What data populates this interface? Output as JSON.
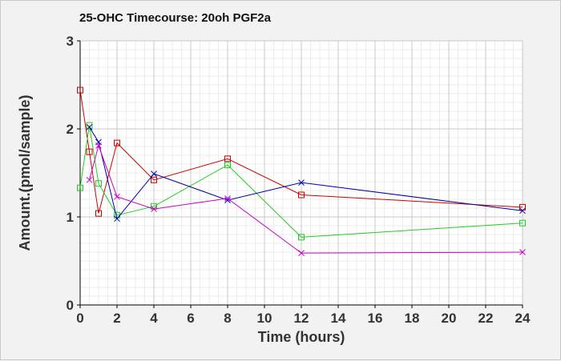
{
  "chart_data": {
    "type": "line",
    "title": "25-OHC Timecourse: 20oh PGF2a",
    "xlabel": "Time (hours)",
    "ylabel": "Amount.(pmol/sample)",
    "xlim": [
      0,
      24
    ],
    "ylim": [
      0,
      3
    ],
    "x_ticks": [
      0,
      2,
      4,
      6,
      8,
      10,
      12,
      14,
      16,
      18,
      20,
      22,
      24
    ],
    "y_ticks": [
      0,
      1,
      2,
      3
    ],
    "grid": true,
    "legend": "none",
    "series": [
      {
        "color": "#cc0000",
        "marker": "square",
        "points": [
          [
            0,
            2.44
          ],
          [
            0.5,
            1.74
          ],
          [
            1,
            1.04
          ],
          [
            2,
            1.84
          ],
          [
            4,
            1.42
          ],
          [
            8,
            1.66
          ],
          [
            12,
            1.25
          ],
          [
            24,
            1.11
          ]
        ]
      },
      {
        "color": "#22cc22",
        "marker": "square",
        "points": [
          [
            0,
            1.33
          ],
          [
            0.5,
            2.04
          ],
          [
            1,
            1.38
          ],
          [
            2,
            1.02
          ],
          [
            4,
            1.12
          ],
          [
            8,
            1.59
          ],
          [
            12,
            0.77
          ],
          [
            24,
            0.93
          ]
        ]
      },
      {
        "color": "#0000aa",
        "marker": "x",
        "points": [
          [
            0.5,
            2.02
          ],
          [
            1,
            1.85
          ],
          [
            2,
            0.98
          ],
          [
            4,
            1.49
          ],
          [
            8,
            1.19
          ],
          [
            12,
            1.39
          ],
          [
            24,
            1.07
          ]
        ]
      },
      {
        "color": "#cc00cc",
        "marker": "x",
        "points": [
          [
            0.5,
            1.42
          ],
          [
            1,
            1.81
          ],
          [
            2,
            1.23
          ],
          [
            4,
            1.09
          ],
          [
            8,
            1.21
          ],
          [
            12,
            0.59
          ],
          [
            24,
            0.6
          ]
        ]
      }
    ]
  }
}
